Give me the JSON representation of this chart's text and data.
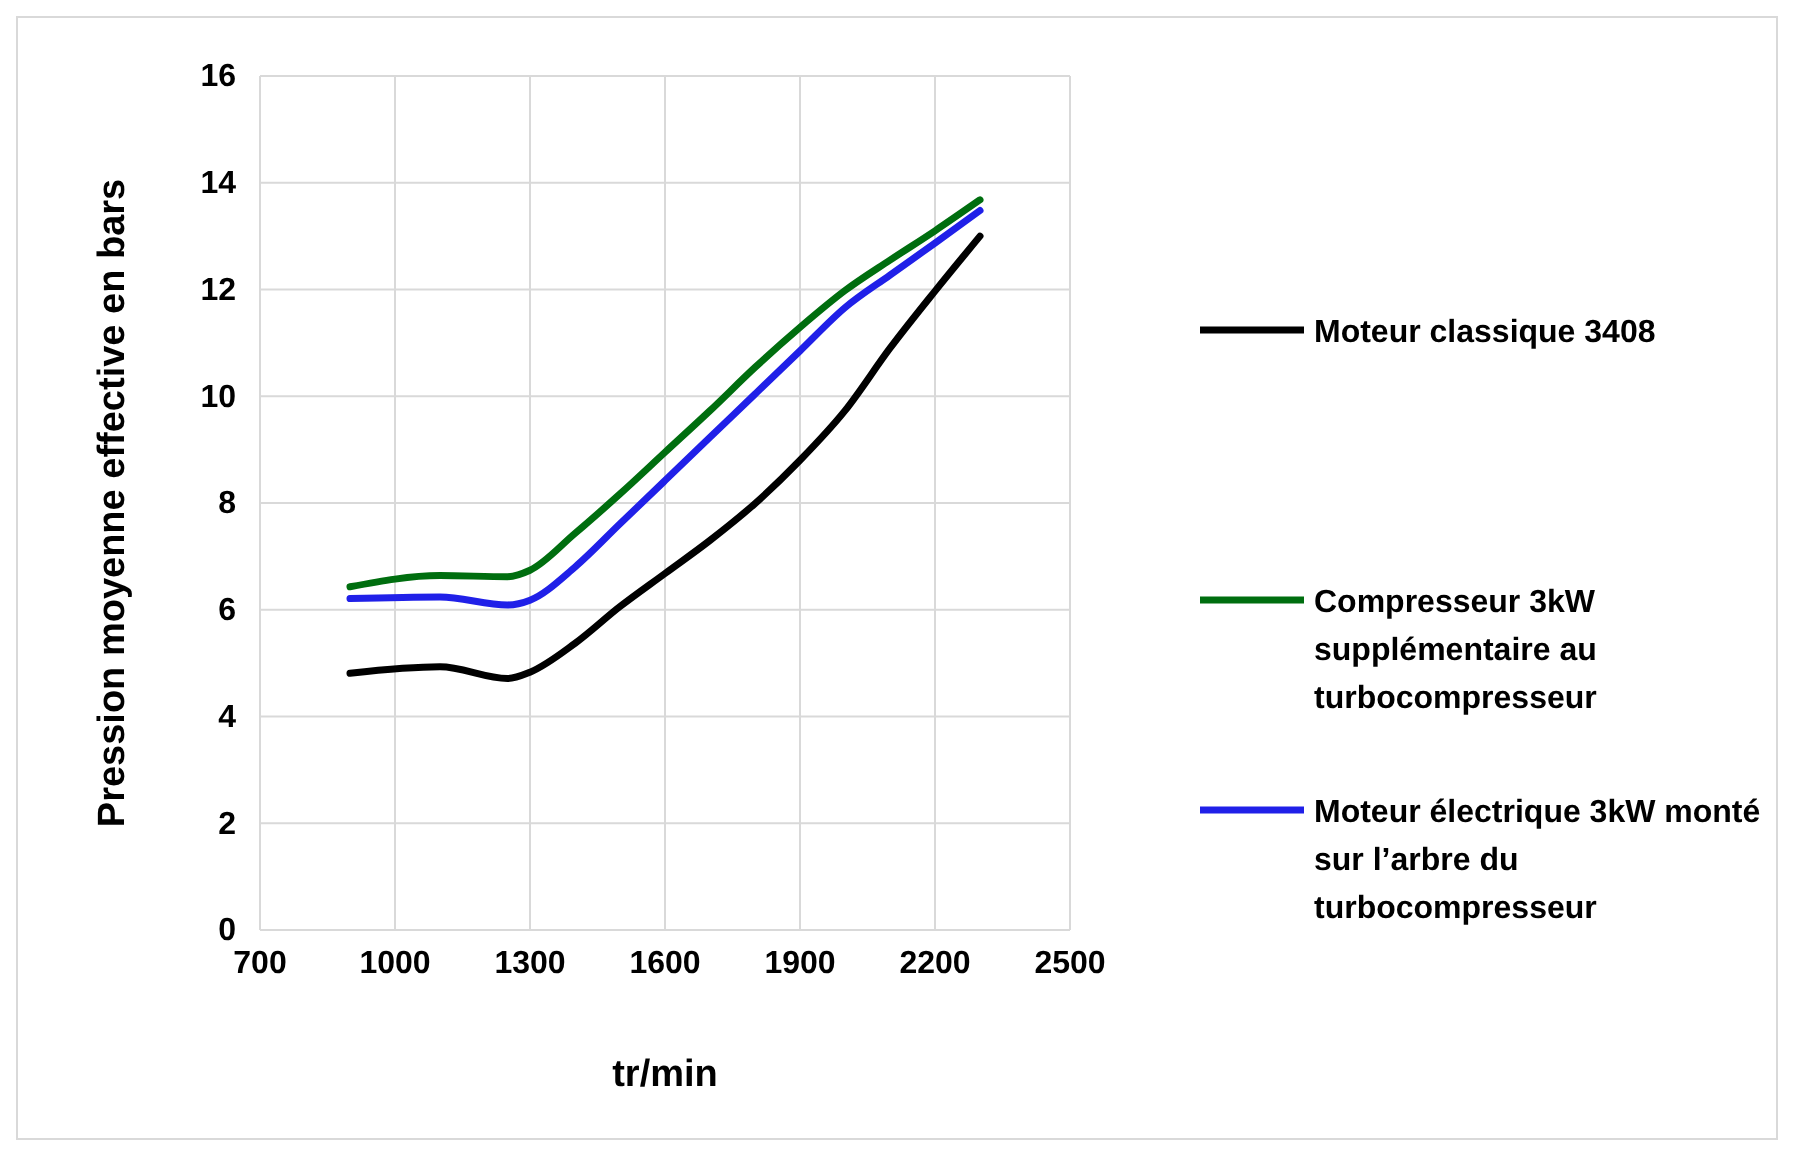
{
  "chart_data": {
    "type": "line",
    "xlabel": "tr/min",
    "ylabel": "Pression moyenne effective en bars",
    "x": [
      900,
      1100,
      1250,
      1300,
      1400,
      1500,
      1600,
      1700,
      1800,
      1900,
      2000,
      2100,
      2200,
      2300
    ],
    "series": [
      {
        "name": "Moteur classique 3408",
        "color": "#000000",
        "values": [
          4.81,
          4.93,
          4.71,
          4.83,
          5.37,
          6.06,
          6.68,
          7.3,
          7.99,
          8.8,
          9.73,
          10.9,
          11.97,
          13.0
        ]
      },
      {
        "name": "Compresseur 3kW supplémentaire au turbocompresseur",
        "color": "#006e0f",
        "values": [
          6.43,
          6.64,
          6.62,
          6.74,
          7.43,
          8.17,
          8.95,
          9.73,
          10.54,
          11.29,
          11.98,
          12.55,
          13.1,
          13.68
        ]
      },
      {
        "name": "Moteur électrique 3kW monté sur l’arbre du turbocompresseur",
        "color": "#2020e8",
        "values": [
          6.21,
          6.24,
          6.09,
          6.18,
          6.8,
          7.61,
          8.42,
          9.23,
          10.04,
          10.85,
          11.66,
          12.27,
          12.87,
          13.48
        ]
      }
    ],
    "xlim": [
      700,
      2500
    ],
    "xticks": [
      700,
      1000,
      1300,
      1600,
      1900,
      2200,
      2500
    ],
    "ylim": [
      0,
      16
    ],
    "yticks": [
      0,
      2,
      4,
      6,
      8,
      10,
      12,
      14,
      16
    ],
    "grid": true,
    "legend": "right",
    "marker": "none",
    "line_style": "solid"
  }
}
